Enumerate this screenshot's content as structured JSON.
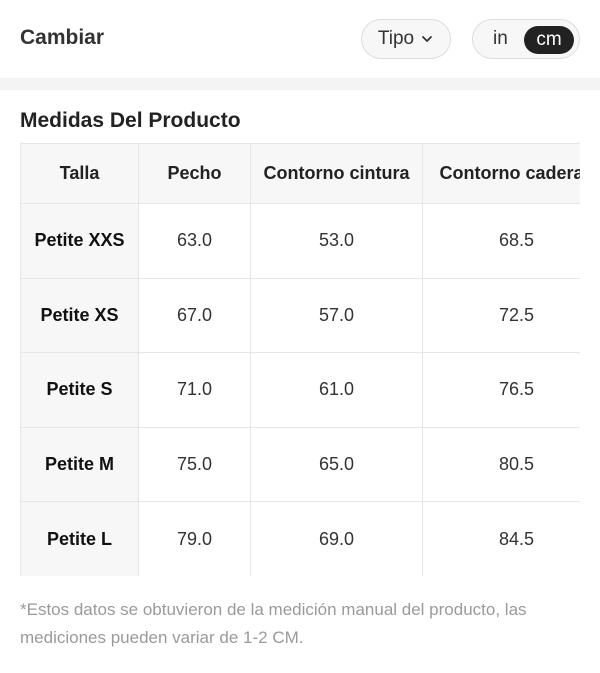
{
  "header": {
    "title": "Cambiar",
    "type_label": "Tipo",
    "units": {
      "in": "in",
      "cm": "cm",
      "selected": "cm"
    }
  },
  "section": {
    "title": "Medidas Del Producto"
  },
  "table": {
    "headers": [
      "Talla",
      "Pecho",
      "Contorno cintura",
      "Contorno caderas"
    ],
    "rows": [
      [
        "Petite XXS",
        "63.0",
        "53.0",
        "68.5"
      ],
      [
        "Petite XS",
        "67.0",
        "57.0",
        "72.5"
      ],
      [
        "Petite S",
        "71.0",
        "61.0",
        "76.5"
      ],
      [
        "Petite M",
        "75.0",
        "65.0",
        "80.5"
      ],
      [
        "Petite L",
        "79.0",
        "69.0",
        "84.5"
      ]
    ]
  },
  "note": "*Estos datos se obtuvieron de la medición manual del producto, las mediciones pueden variar de 1-2 CM.",
  "icons": {
    "type_dropdown": "chevron-down-icon"
  },
  "colors": {
    "toggle_active_bg": "#222222",
    "header_cell_bg": "#f7f7f7",
    "note_text": "#9a9a9a"
  }
}
